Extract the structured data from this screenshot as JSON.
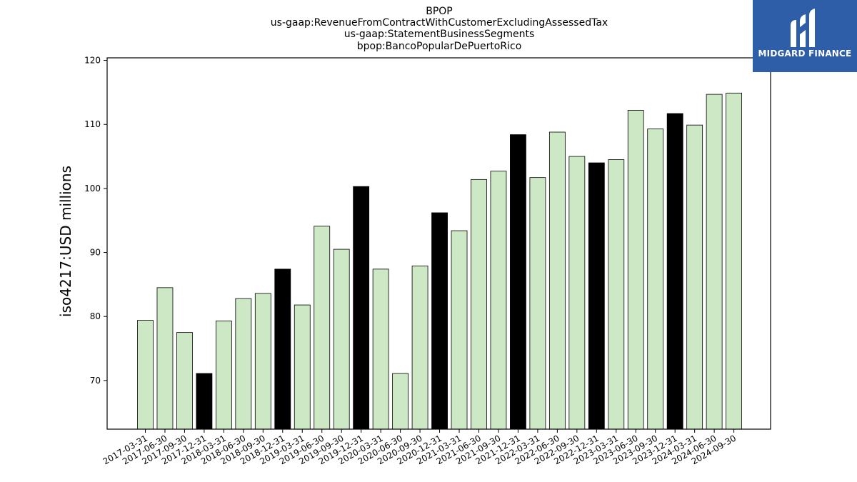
{
  "chart_data": {
    "type": "bar",
    "title_lines": [
      "BPOP",
      "us-gaap:RevenueFromContractWithCustomerExcludingAssessedTax",
      "us-gaap:StatementBusinessSegments",
      "bpop:BancoPopularDePuertoRico"
    ],
    "ylabel": "iso4217:USD  millions",
    "xlabel": "",
    "ylim": [
      62.4,
      120.4
    ],
    "yticks": [
      70,
      80,
      90,
      100,
      110,
      120
    ],
    "grid": false,
    "categories": [
      "2017-03-31",
      "2017-06-30",
      "2017-09-30",
      "2017-12-31",
      "2018-03-31",
      "2018-06-30",
      "2018-09-30",
      "2018-12-31",
      "2019-03-31",
      "2019-06-30",
      "2019-09-30",
      "2019-12-31",
      "2020-03-31",
      "2020-06-30",
      "2020-09-30",
      "2020-12-31",
      "2021-03-31",
      "2021-06-30",
      "2021-09-30",
      "2021-12-31",
      "2022-03-31",
      "2022-06-30",
      "2022-09-30",
      "2022-12-31",
      "2023-03-31",
      "2023-06-30",
      "2023-09-30",
      "2023-12-31",
      "2024-03-31",
      "2024-06-30",
      "2024-09-30"
    ],
    "values": [
      79.4,
      84.5,
      77.5,
      71.1,
      79.3,
      82.8,
      83.6,
      87.4,
      81.8,
      94.1,
      90.5,
      100.3,
      87.4,
      71.1,
      87.9,
      96.2,
      93.4,
      101.4,
      102.7,
      108.4,
      101.7,
      108.8,
      105.0,
      104.0,
      104.5,
      112.2,
      109.3,
      111.7,
      109.9,
      114.7,
      114.9
    ],
    "highlight": [
      false,
      false,
      false,
      true,
      false,
      false,
      false,
      true,
      false,
      false,
      false,
      true,
      false,
      false,
      false,
      true,
      false,
      false,
      false,
      true,
      false,
      false,
      false,
      true,
      false,
      false,
      false,
      true,
      false,
      false,
      false
    ],
    "colors": {
      "bar": "#cde8c4",
      "highlight_bar": "#000000",
      "edge": "#000000"
    }
  },
  "logo": {
    "text": "MIDGARD FINANCE",
    "background": "#2e5ea8"
  }
}
